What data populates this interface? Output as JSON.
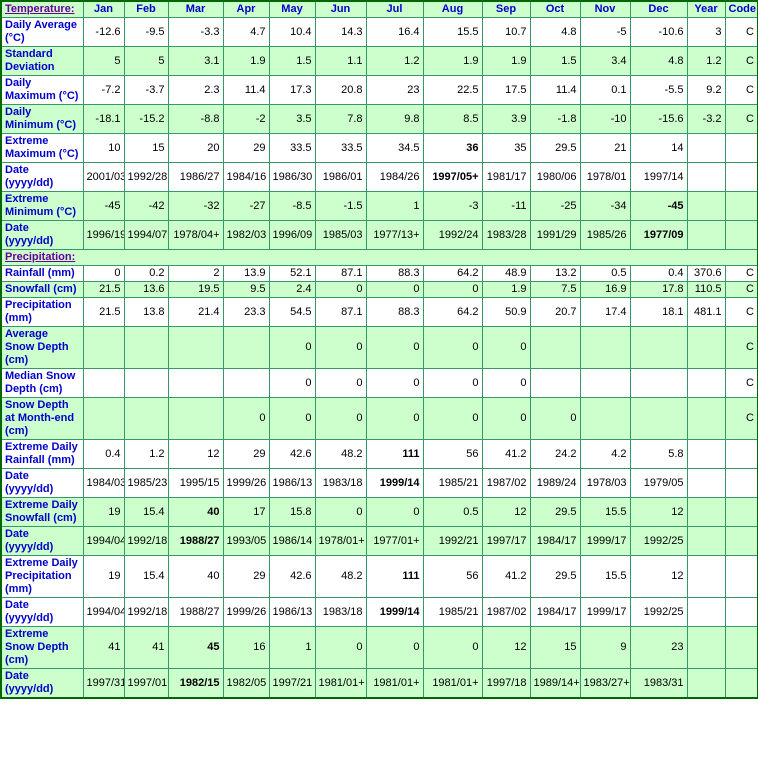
{
  "colors": {
    "shaded_row_bg": "#ccffcc",
    "plain_row_bg": "#ffffff",
    "grid_line": "#339966",
    "outer_border": "#006600",
    "row_label_text": "#0000cc",
    "column_header_text": "#0000cc",
    "section_label_text": "#660099",
    "value_text": "#000000"
  },
  "header": {
    "section_label": "Temperature:",
    "columns": [
      "Jan",
      "Feb",
      "Mar",
      "Apr",
      "May",
      "Jun",
      "Jul",
      "Aug",
      "Sep",
      "Oct",
      "Nov",
      "Dec",
      "Year",
      "Code"
    ]
  },
  "precipitation_section_label": "Precipitation:",
  "rows_temperature": [
    {
      "label": "Daily Average (°C)",
      "shaded": false,
      "bold": [],
      "values": [
        "-12.6",
        "-9.5",
        "-3.3",
        "4.7",
        "10.4",
        "14.3",
        "16.4",
        "15.5",
        "10.7",
        "4.8",
        "-5",
        "-10.6",
        "3",
        "C"
      ]
    },
    {
      "label": "Standard Deviation",
      "shaded": true,
      "bold": [],
      "values": [
        "5",
        "5",
        "3.1",
        "1.9",
        "1.5",
        "1.1",
        "1.2",
        "1.9",
        "1.9",
        "1.5",
        "3.4",
        "4.8",
        "1.2",
        "C"
      ]
    },
    {
      "label": "Daily Maximum (°C)",
      "shaded": false,
      "bold": [],
      "values": [
        "-7.2",
        "-3.7",
        "2.3",
        "11.4",
        "17.3",
        "20.8",
        "23",
        "22.5",
        "17.5",
        "11.4",
        "0.1",
        "-5.5",
        "9.2",
        "C"
      ]
    },
    {
      "label": "Daily Minimum (°C)",
      "shaded": true,
      "bold": [],
      "values": [
        "-18.1",
        "-15.2",
        "-8.8",
        "-2",
        "3.5",
        "7.8",
        "9.8",
        "8.5",
        "3.9",
        "-1.8",
        "-10",
        "-15.6",
        "-3.2",
        "C"
      ]
    },
    {
      "label": "Extreme Maximum (°C)",
      "shaded": false,
      "bold": [
        7
      ],
      "values": [
        "10",
        "15",
        "20",
        "29",
        "33.5",
        "33.5",
        "34.5",
        "36",
        "35",
        "29.5",
        "21",
        "14",
        "",
        ""
      ]
    },
    {
      "label": "Date (yyyy/dd)",
      "shaded": false,
      "bold": [
        7
      ],
      "values": [
        "2001/03",
        "1992/28",
        "1986/27",
        "1984/16",
        "1986/30",
        "1986/01",
        "1984/26",
        "1997/05+",
        "1981/17",
        "1980/06",
        "1978/01",
        "1997/14",
        "",
        ""
      ]
    },
    {
      "label": "Extreme Minimum (°C)",
      "shaded": true,
      "bold": [
        11
      ],
      "values": [
        "-45",
        "-42",
        "-32",
        "-27",
        "-8.5",
        "-1.5",
        "1",
        "-3",
        "-11",
        "-25",
        "-34",
        "-45",
        "",
        ""
      ]
    },
    {
      "label": "Date (yyyy/dd)",
      "shaded": true,
      "bold": [
        11
      ],
      "values": [
        "1996/19",
        "1994/07",
        "1978/04+",
        "1982/03",
        "1996/09",
        "1985/03",
        "1977/13+",
        "1992/24",
        "1983/28",
        "1991/29",
        "1985/26",
        "1977/09",
        "",
        ""
      ]
    }
  ],
  "rows_precipitation": [
    {
      "label": "Rainfall (mm)",
      "shaded": false,
      "bold": [],
      "values": [
        "0",
        "0.2",
        "2",
        "13.9",
        "52.1",
        "87.1",
        "88.3",
        "64.2",
        "48.9",
        "13.2",
        "0.5",
        "0.4",
        "370.6",
        "C"
      ]
    },
    {
      "label": "Snowfall (cm)",
      "shaded": true,
      "bold": [],
      "values": [
        "21.5",
        "13.6",
        "19.5",
        "9.5",
        "2.4",
        "0",
        "0",
        "0",
        "1.9",
        "7.5",
        "16.9",
        "17.8",
        "110.5",
        "C"
      ]
    },
    {
      "label": "Precipitation (mm)",
      "shaded": false,
      "bold": [],
      "values": [
        "21.5",
        "13.8",
        "21.4",
        "23.3",
        "54.5",
        "87.1",
        "88.3",
        "64.2",
        "50.9",
        "20.7",
        "17.4",
        "18.1",
        "481.1",
        "C"
      ]
    },
    {
      "label": "Average Snow Depth (cm)",
      "shaded": true,
      "bold": [],
      "values": [
        "",
        "",
        "",
        "",
        "0",
        "0",
        "0",
        "0",
        "0",
        "",
        "",
        "",
        "",
        "C"
      ]
    },
    {
      "label": "Median Snow Depth (cm)",
      "shaded": false,
      "bold": [],
      "values": [
        "",
        "",
        "",
        "",
        "0",
        "0",
        "0",
        "0",
        "0",
        "",
        "",
        "",
        "",
        "C"
      ]
    },
    {
      "label": "Snow Depth at Month-end (cm)",
      "shaded": true,
      "bold": [],
      "values": [
        "",
        "",
        "",
        "0",
        "0",
        "0",
        "0",
        "0",
        "0",
        "0",
        "",
        "",
        "",
        "C"
      ]
    },
    {
      "label": "Extreme Daily Rainfall (mm)",
      "shaded": false,
      "bold": [
        6
      ],
      "values": [
        "0.4",
        "1.2",
        "12",
        "29",
        "42.6",
        "48.2",
        "111",
        "56",
        "41.2",
        "24.2",
        "4.2",
        "5.8",
        "",
        ""
      ]
    },
    {
      "label": "Date (yyyy/dd)",
      "shaded": false,
      "bold": [
        6
      ],
      "values": [
        "1984/03",
        "1985/23",
        "1995/15",
        "1999/26",
        "1986/13",
        "1983/18",
        "1999/14",
        "1985/21",
        "1987/02",
        "1989/24",
        "1978/03",
        "1979/05",
        "",
        ""
      ]
    },
    {
      "label": "Extreme Daily Snowfall (cm)",
      "shaded": true,
      "bold": [
        2
      ],
      "values": [
        "19",
        "15.4",
        "40",
        "17",
        "15.8",
        "0",
        "0",
        "0.5",
        "12",
        "29.5",
        "15.5",
        "12",
        "",
        ""
      ]
    },
    {
      "label": "Date (yyyy/dd)",
      "shaded": true,
      "bold": [
        2
      ],
      "values": [
        "1994/04",
        "1992/18",
        "1988/27",
        "1993/05",
        "1986/14",
        "1978/01+",
        "1977/01+",
        "1992/21",
        "1997/17",
        "1984/17",
        "1999/17",
        "1992/25",
        "",
        ""
      ]
    },
    {
      "label": "Extreme Daily Precipitation (mm)",
      "shaded": false,
      "bold": [
        6
      ],
      "values": [
        "19",
        "15.4",
        "40",
        "29",
        "42.6",
        "48.2",
        "111",
        "56",
        "41.2",
        "29.5",
        "15.5",
        "12",
        "",
        ""
      ]
    },
    {
      "label": "Date (yyyy/dd)",
      "shaded": false,
      "bold": [
        6
      ],
      "values": [
        "1994/04",
        "1992/18",
        "1988/27",
        "1999/26",
        "1986/13",
        "1983/18",
        "1999/14",
        "1985/21",
        "1987/02",
        "1984/17",
        "1999/17",
        "1992/25",
        "",
        ""
      ]
    },
    {
      "label": "Extreme Snow Depth (cm)",
      "shaded": true,
      "bold": [
        2
      ],
      "values": [
        "41",
        "41",
        "45",
        "16",
        "1",
        "0",
        "0",
        "0",
        "12",
        "15",
        "9",
        "23",
        "",
        ""
      ]
    },
    {
      "label": "Date (yyyy/dd)",
      "shaded": true,
      "bold": [
        2
      ],
      "values": [
        "1997/31",
        "1997/01",
        "1982/15",
        "1982/05",
        "1997/21",
        "1981/01+",
        "1981/01+",
        "1981/01+",
        "1997/18",
        "1989/14+",
        "1983/27+",
        "1983/31",
        "",
        ""
      ]
    }
  ]
}
